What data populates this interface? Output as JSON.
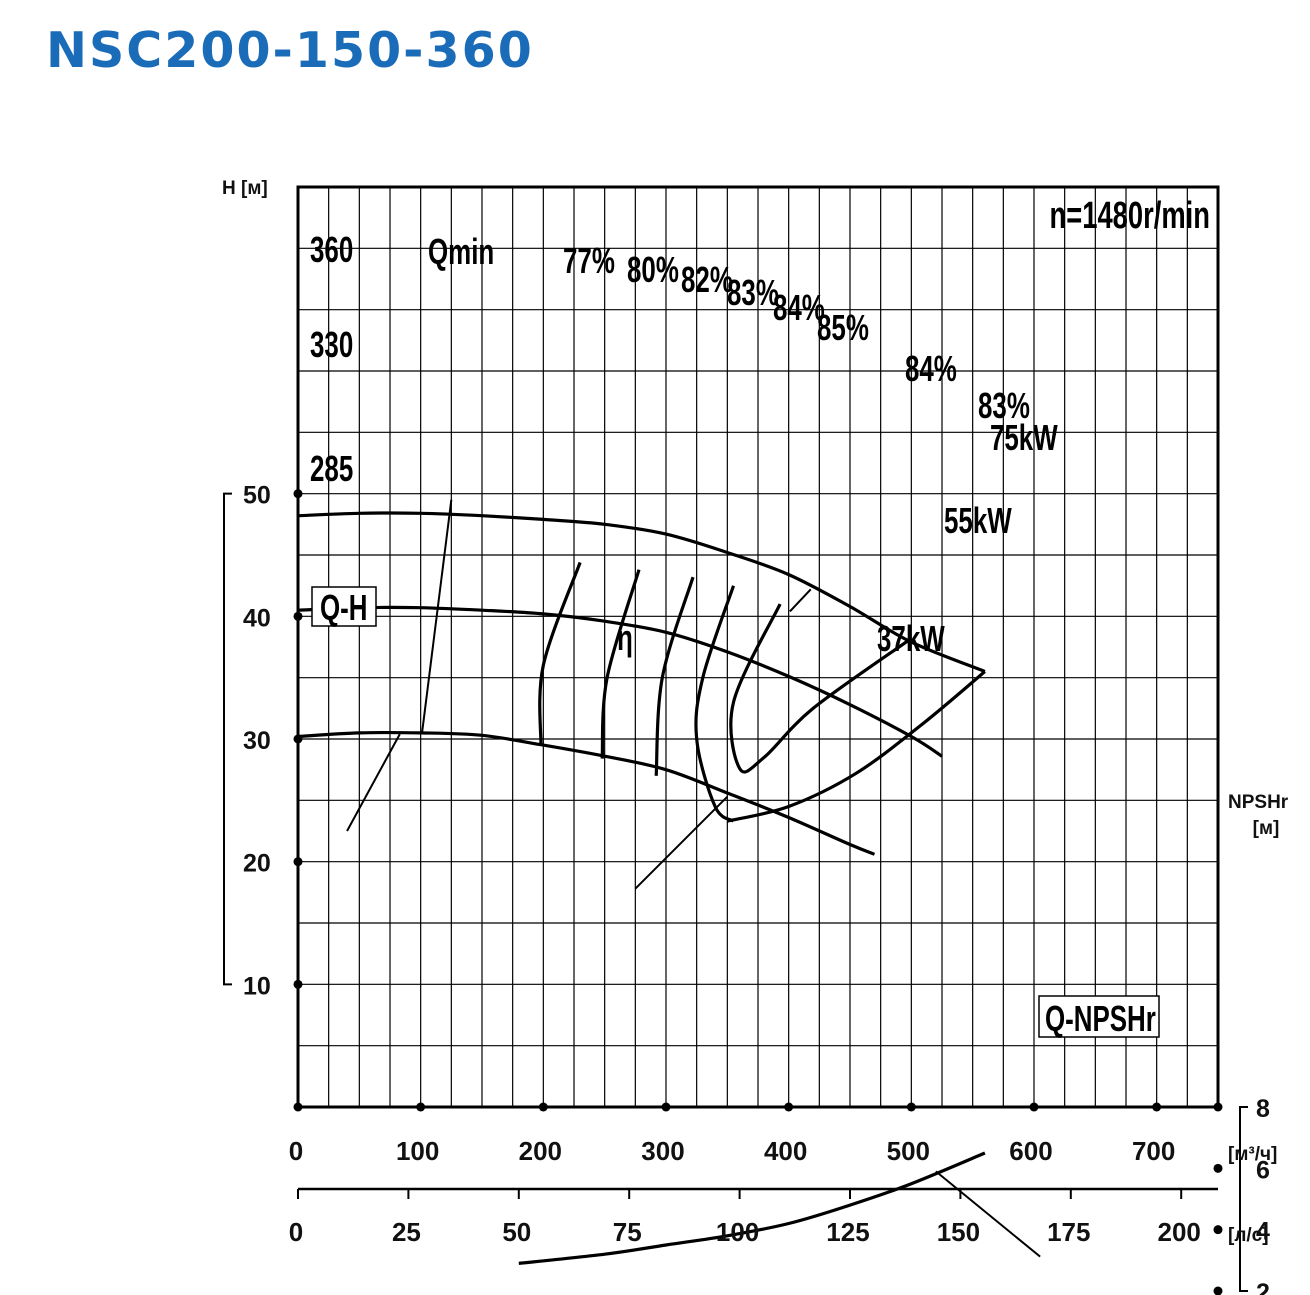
{
  "title": "NSC200-150-360",
  "chart_data": {
    "type": "line",
    "speed_label": "n=1480r/min",
    "x_axis_m3h": {
      "unit": "[м³/ч]",
      "range": [
        0,
        750
      ],
      "ticks": [
        0,
        100,
        200,
        300,
        400,
        500,
        600,
        700
      ]
    },
    "x_axis_ls": {
      "unit": "[л/с]",
      "ticks": [
        0,
        25,
        50,
        75,
        100,
        125,
        150,
        175,
        200
      ]
    },
    "y_axis_head": {
      "label": "H [м]",
      "range": [
        0,
        75
      ],
      "ticks": [
        10,
        20,
        30,
        40,
        50
      ]
    },
    "y_axis_npsh": {
      "label_top": "NPSHr",
      "label_bottom": "[м]",
      "ticks": [
        2,
        4,
        6,
        8
      ]
    },
    "series": [
      {
        "name": "360",
        "points": [
          [
            0,
            48.2
          ],
          [
            50,
            48.4
          ],
          [
            100,
            48.4
          ],
          [
            150,
            48.2
          ],
          [
            200,
            47.9
          ],
          [
            250,
            47.5
          ],
          [
            300,
            46.7
          ],
          [
            350,
            45.2
          ],
          [
            400,
            43.4
          ],
          [
            450,
            40.8
          ],
          [
            500,
            37.9
          ],
          [
            560,
            35.5
          ]
        ]
      },
      {
        "name": "330",
        "points": [
          [
            0,
            40.5
          ],
          [
            50,
            40.7
          ],
          [
            100,
            40.7
          ],
          [
            150,
            40.5
          ],
          [
            200,
            40.2
          ],
          [
            250,
            39.6
          ],
          [
            300,
            38.7
          ],
          [
            350,
            37.1
          ],
          [
            400,
            35.1
          ],
          [
            450,
            32.8
          ],
          [
            500,
            30.2
          ],
          [
            525,
            28.6
          ]
        ]
      },
      {
        "name": "285",
        "points": [
          [
            0,
            30.2
          ],
          [
            50,
            30.5
          ],
          [
            100,
            30.5
          ],
          [
            150,
            30.3
          ],
          [
            200,
            29.5
          ],
          [
            250,
            28.6
          ],
          [
            300,
            27.5
          ],
          [
            350,
            25.6
          ],
          [
            400,
            23.6
          ],
          [
            450,
            21.4
          ],
          [
            470,
            20.6
          ]
        ]
      }
    ],
    "npsh_curve": {
      "name": "Q-NPSHr",
      "points": [
        [
          180,
          2.9
        ],
        [
          250,
          3.2
        ],
        [
          300,
          3.5
        ],
        [
          350,
          3.8
        ],
        [
          400,
          4.2
        ],
        [
          450,
          4.8
        ],
        [
          500,
          5.5
        ],
        [
          560,
          6.5
        ]
      ]
    },
    "efficiency_labels": [
      "77%",
      "80%",
      "82%",
      "83%",
      "84%",
      "85%",
      "84%",
      "83%"
    ],
    "efficiency_symbol": "η",
    "power_labels": [
      "75kW",
      "55kW",
      "37kW"
    ],
    "curve_labels": {
      "qh": "Q-H",
      "qmin": "Qmin"
    },
    "colors": {
      "title": "#1a6cb8",
      "lines": "#000000"
    }
  }
}
